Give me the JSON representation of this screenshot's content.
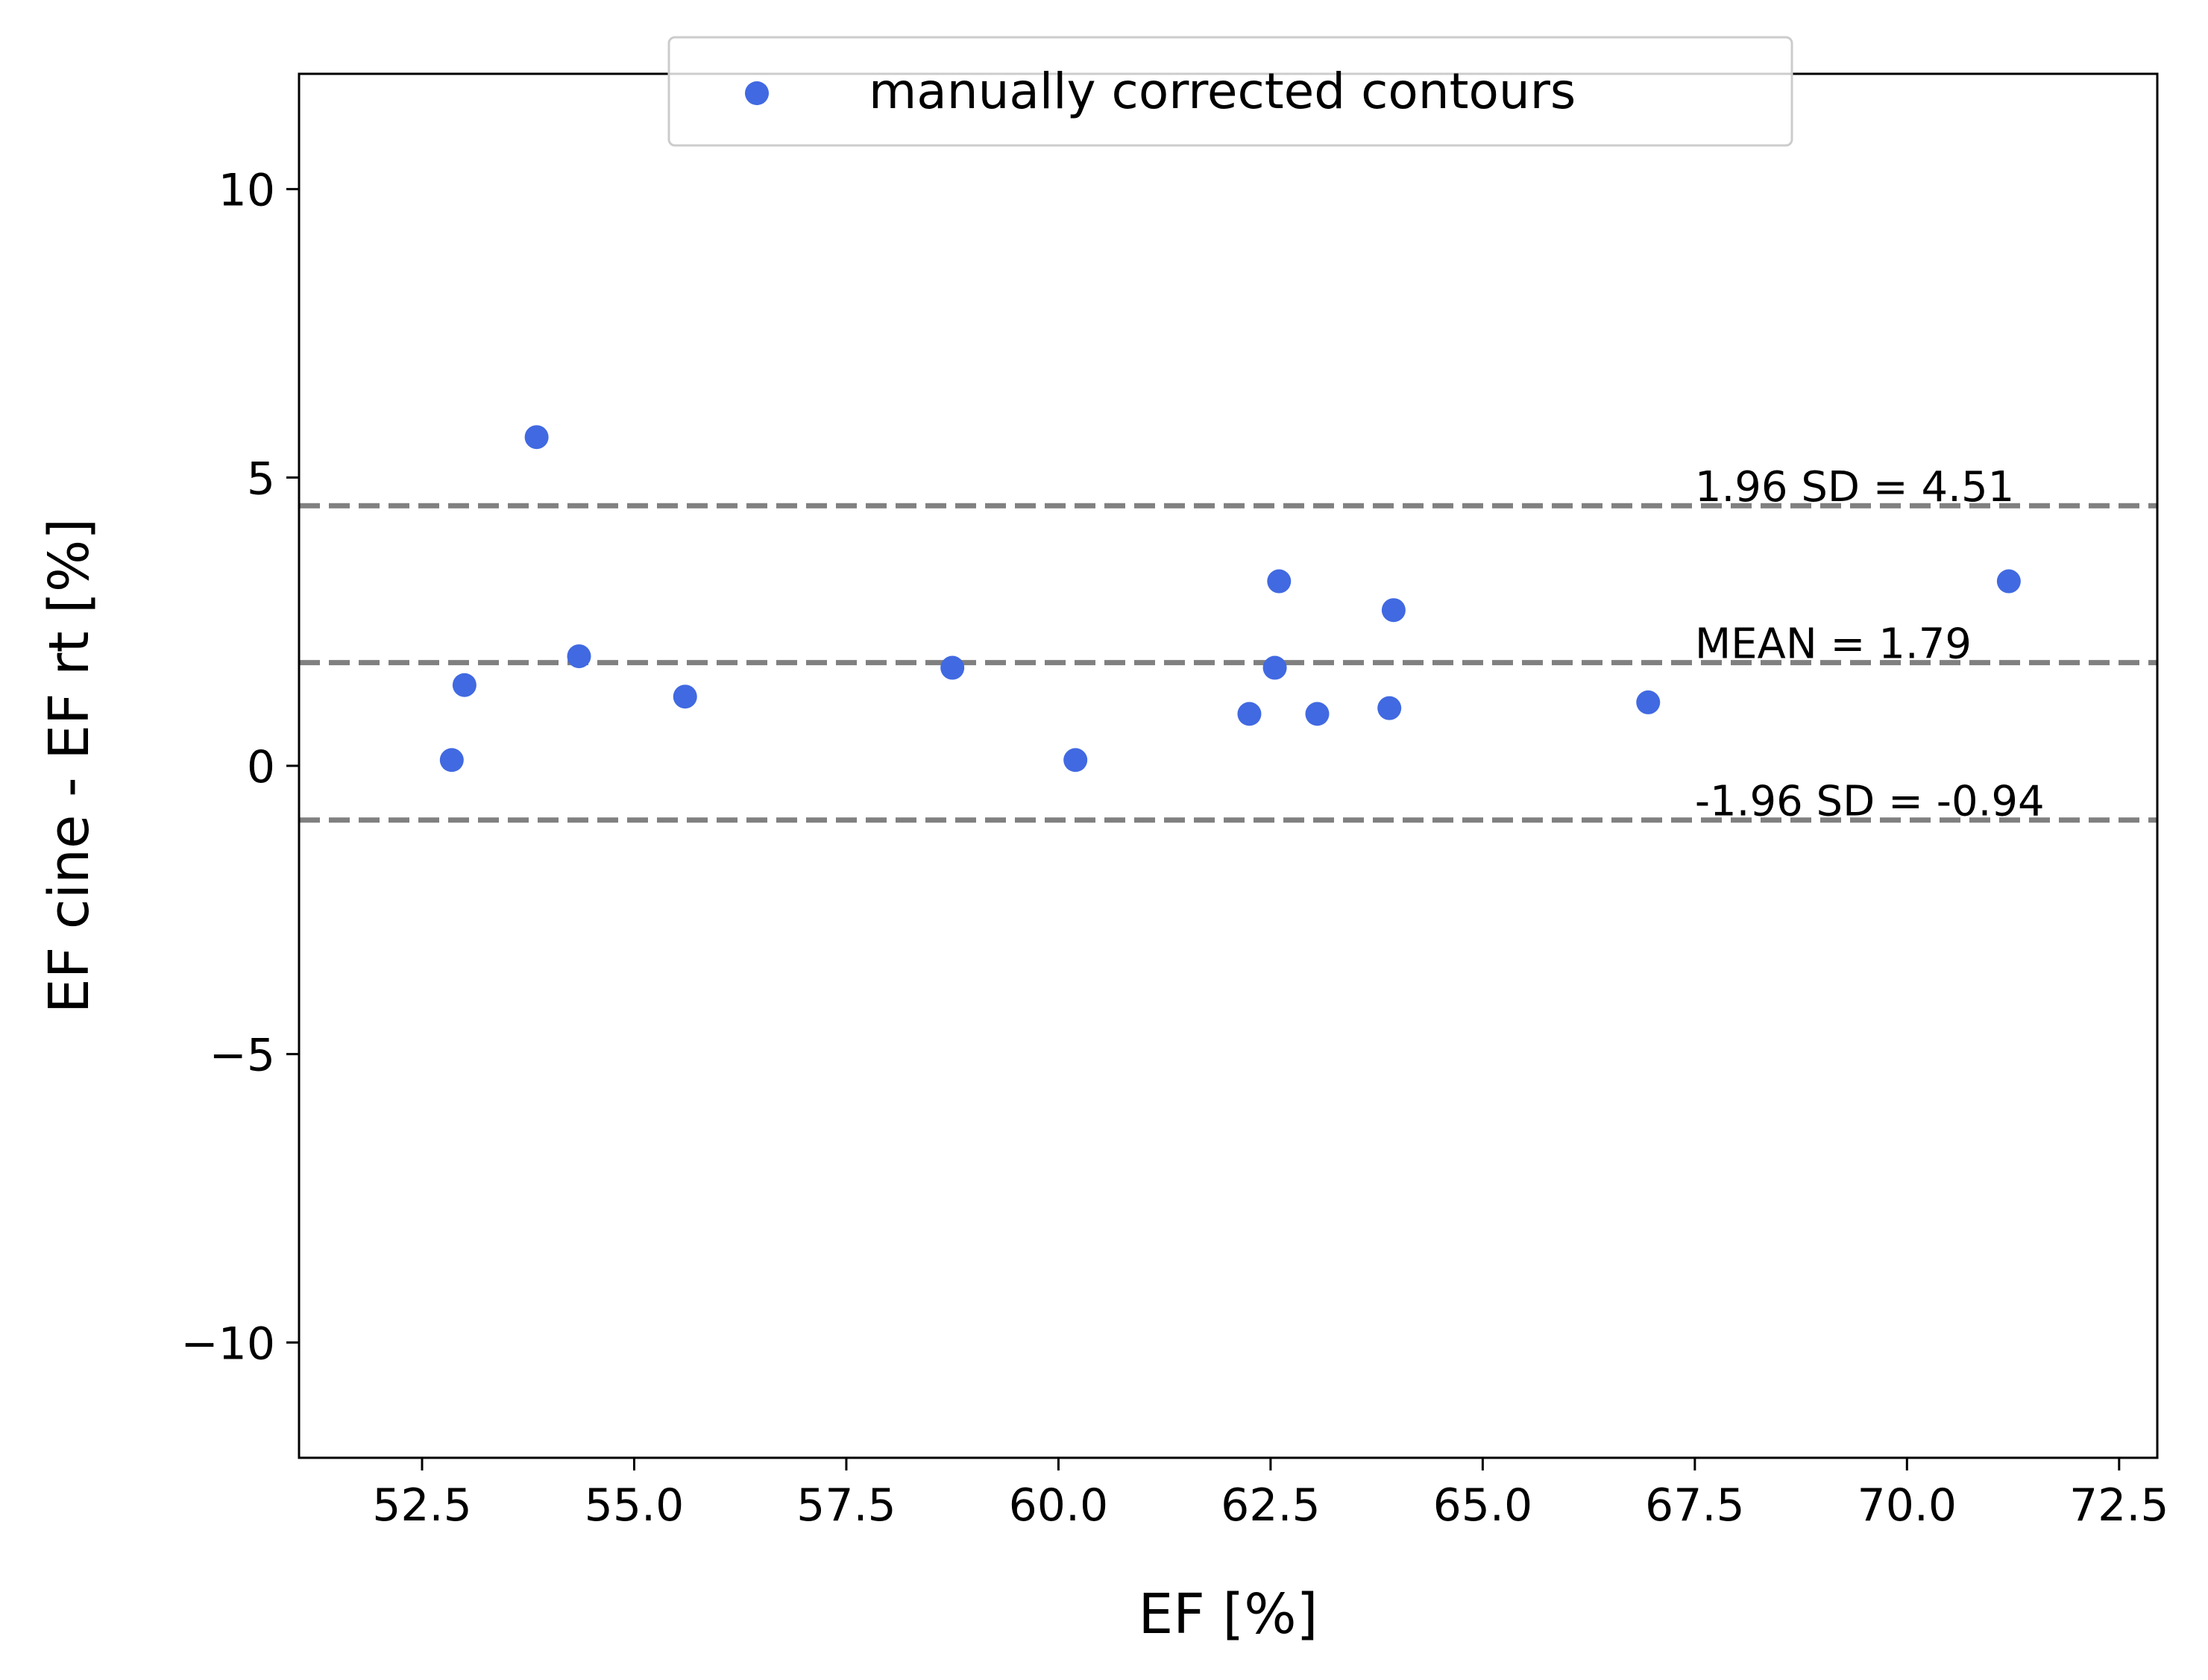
{
  "chart_data": {
    "type": "scatter",
    "title": "",
    "xlabel": "EF [%]",
    "ylabel": "EF cine - EF rt [%]",
    "xlim": [
      51.05,
      72.95
    ],
    "ylim": [
      -12,
      12
    ],
    "xticks": [
      "52.5",
      "55.0",
      "57.5",
      "60.0",
      "62.5",
      "65.0",
      "67.5",
      "70.0",
      "72.5"
    ],
    "xtick_values": [
      52.5,
      55.0,
      57.5,
      60.0,
      62.5,
      65.0,
      67.5,
      70.0,
      72.5
    ],
    "yticks": [
      "10",
      "5",
      "0",
      "−5",
      "−10"
    ],
    "ytick_values": [
      10,
      5,
      0,
      -5,
      -10
    ],
    "grid": false,
    "legend": {
      "placement": "upper-center",
      "entries": [
        "manually corrected contours"
      ]
    },
    "series": [
      {
        "name": "manually corrected contours",
        "color": "#4169E1",
        "points": [
          {
            "x": 52.85,
            "y": 0.1
          },
          {
            "x": 53.0,
            "y": 1.4
          },
          {
            "x": 53.85,
            "y": 5.7
          },
          {
            "x": 54.35,
            "y": 1.9
          },
          {
            "x": 55.6,
            "y": 1.2
          },
          {
            "x": 58.75,
            "y": 1.7
          },
          {
            "x": 60.2,
            "y": 0.1
          },
          {
            "x": 62.25,
            "y": 0.9
          },
          {
            "x": 62.55,
            "y": 1.7
          },
          {
            "x": 62.6,
            "y": 3.2
          },
          {
            "x": 63.05,
            "y": 0.9
          },
          {
            "x": 63.9,
            "y": 1.0
          },
          {
            "x": 63.95,
            "y": 2.7
          },
          {
            "x": 66.95,
            "y": 1.1
          },
          {
            "x": 71.2,
            "y": 3.2
          }
        ]
      }
    ],
    "reference_lines": [
      {
        "y": 4.51,
        "label": "1.96 SD = 4.51",
        "color": "#808080",
        "style": "dashed"
      },
      {
        "y": 1.79,
        "label": "MEAN = 1.79",
        "color": "#808080",
        "style": "dashed"
      },
      {
        "y": -0.94,
        "label": "-1.96 SD = -0.94",
        "color": "#808080",
        "style": "dashed"
      }
    ],
    "reference_label_x": 67.5
  }
}
